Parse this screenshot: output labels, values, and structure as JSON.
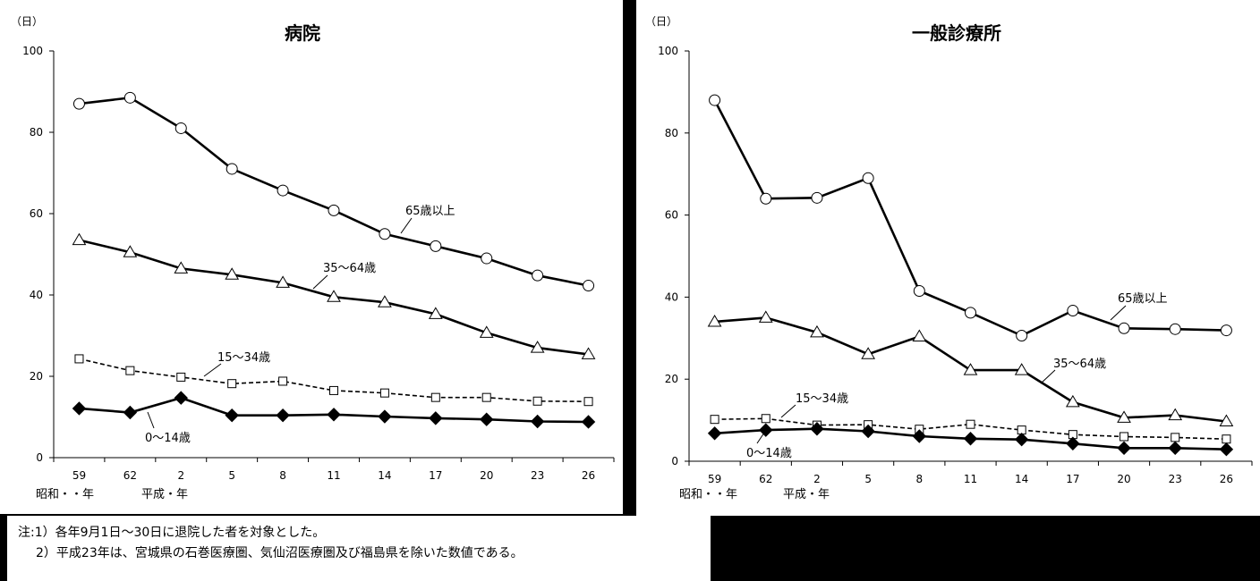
{
  "unit_label": "（日）",
  "era_label_showa": "昭和・・年",
  "era_label_heisei": "平成・年",
  "notes": [
    "注:1）各年9月1日～30日に退院した者を対象とした。",
    "2）平成23年は、宮城県の石巻医療圏、気仙沼医療圏及び福島県を除いた数値である。"
  ],
  "chart_data": [
    {
      "type": "line",
      "title": "病院",
      "categories": [
        "59",
        "62",
        "2",
        "5",
        "8",
        "11",
        "14",
        "17",
        "20",
        "23",
        "26"
      ],
      "ylim": [
        0,
        100
      ],
      "yticks": [
        "0",
        "20",
        "40",
        "60",
        "80",
        "100"
      ],
      "grid": false,
      "series": [
        {
          "name": "65歳以上",
          "marker": "circle",
          "style": "solid",
          "values": [
            87.0,
            88.5,
            81.0,
            71.0,
            65.7,
            60.8,
            55.0,
            52.0,
            49.0,
            44.8,
            42.3
          ]
        },
        {
          "name": "35～64歳",
          "marker": "triangle",
          "style": "solid",
          "values": [
            53.5,
            50.5,
            46.5,
            45.0,
            43.0,
            39.5,
            38.2,
            35.3,
            30.7,
            27.0,
            25.4
          ]
        },
        {
          "name": "15～34歳",
          "marker": "square",
          "style": "dashed",
          "values": [
            24.3,
            21.4,
            19.8,
            18.2,
            18.8,
            16.5,
            15.9,
            14.8,
            14.8,
            13.9,
            13.8
          ]
        },
        {
          "name": "0～14歳",
          "marker": "diamond",
          "style": "solid",
          "values": [
            12.1,
            11.1,
            14.7,
            10.4,
            10.4,
            10.6,
            10.1,
            9.7,
            9.4,
            8.9,
            8.8
          ]
        }
      ]
    },
    {
      "type": "line",
      "title": "一般診療所",
      "categories": [
        "59",
        "62",
        "2",
        "5",
        "8",
        "11",
        "14",
        "17",
        "20",
        "23",
        "26"
      ],
      "ylim": [
        0,
        100
      ],
      "yticks": [
        "0",
        "20",
        "40",
        "60",
        "80",
        "100"
      ],
      "grid": false,
      "series": [
        {
          "name": "65歳以上",
          "marker": "circle",
          "style": "solid",
          "values": [
            88.0,
            64.0,
            64.2,
            69.0,
            41.5,
            36.2,
            30.6,
            36.7,
            32.4,
            32.2,
            31.9
          ]
        },
        {
          "name": "35～64歳",
          "marker": "triangle",
          "style": "solid",
          "values": [
            34.0,
            35.0,
            31.4,
            26.1,
            30.4,
            22.2,
            22.2,
            14.4,
            10.6,
            11.2,
            9.7
          ]
        },
        {
          "name": "15～34歳",
          "marker": "square",
          "style": "dashed",
          "values": [
            10.2,
            10.4,
            8.8,
            8.9,
            7.8,
            9.0,
            7.6,
            6.5,
            6.0,
            5.8,
            5.4
          ]
        },
        {
          "name": "0～14歳",
          "marker": "diamond",
          "style": "solid",
          "values": [
            6.8,
            7.6,
            7.9,
            7.3,
            6.1,
            5.5,
            5.3,
            4.3,
            3.2,
            3.2,
            2.9
          ]
        }
      ]
    }
  ]
}
